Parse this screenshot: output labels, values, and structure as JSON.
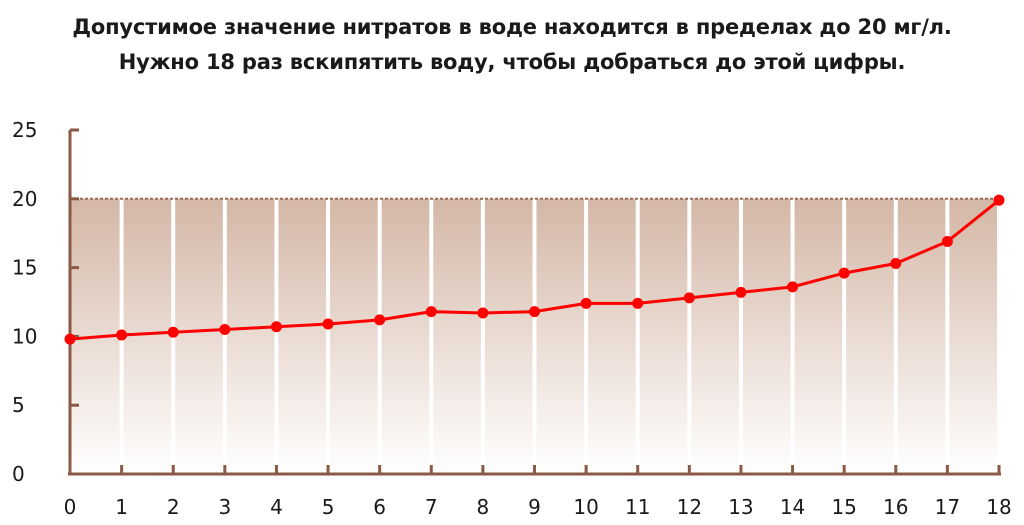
{
  "chart_data": {
    "type": "line",
    "title_lines": [
      "Допустимое значение нитратов в воде находится в пределах до 20 мг/л.",
      "Нужно 18 раз вскипятить воду, чтобы добраться до этой цифры."
    ],
    "xlabel": "",
    "ylabel": "",
    "x": [
      0,
      1,
      2,
      3,
      4,
      5,
      6,
      7,
      8,
      9,
      10,
      11,
      12,
      13,
      14,
      15,
      16,
      17,
      18
    ],
    "values": [
      9.8,
      10.1,
      10.3,
      10.5,
      10.7,
      10.9,
      11.2,
      11.8,
      11.7,
      11.8,
      12.4,
      12.4,
      12.8,
      13.2,
      13.6,
      14.6,
      15.3,
      16.9,
      19.9
    ],
    "ylim": [
      0,
      25
    ],
    "yticks": [
      "0",
      "5",
      "10",
      "15",
      "20",
      "25"
    ],
    "xticks": [
      "0",
      "1",
      "2",
      "3",
      "4",
      "5",
      "6",
      "7",
      "8",
      "9",
      "10",
      "11",
      "12",
      "13",
      "14",
      "15",
      "16",
      "17",
      "18"
    ],
    "threshold": 20,
    "grid": "vertical",
    "legend": "none",
    "colors": {
      "line": "#ff0000",
      "axis": "#8b5a46",
      "threshold": "#9b6b55",
      "fill_top": "#d4b7a6",
      "fill_bottom": "#ffffff",
      "text": "#1a1a1a"
    }
  }
}
